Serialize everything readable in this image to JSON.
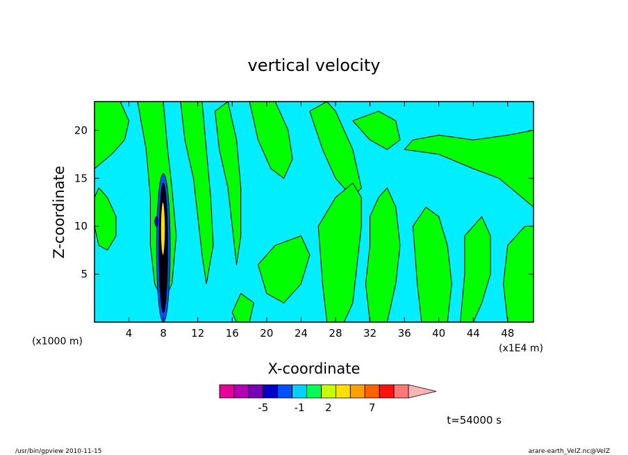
{
  "chart_data": {
    "type": "heatmap",
    "title": "vertical velocity",
    "xlabel": "X-coordinate",
    "ylabel": "Z-coordinate",
    "x_unit_left": "(x1000 m)",
    "x_unit_right": "(x1E4 m)",
    "xlim": [
      0,
      51
    ],
    "ylim": [
      0,
      23
    ],
    "x_ticks": [
      4,
      8,
      12,
      16,
      20,
      24,
      28,
      32,
      36,
      40,
      44,
      48
    ],
    "y_ticks": [
      5,
      10,
      15,
      20
    ],
    "background_color": "#00eeff",
    "contour_color": "#000000",
    "regions": [
      {
        "name": "positive",
        "color": "#00ff00",
        "polygons": [
          [
            [
              0,
              16
            ],
            [
              2,
              17.5
            ],
            [
              3.5,
              19
            ],
            [
              4,
              21
            ],
            [
              3,
              23
            ],
            [
              0,
              23
            ]
          ],
          [
            [
              0.5,
              14
            ],
            [
              1.5,
              13
            ],
            [
              2.5,
              11
            ],
            [
              2.5,
              9
            ],
            [
              1.5,
              7.5
            ],
            [
              0.5,
              8
            ],
            [
              0,
              10
            ],
            [
              0,
              13
            ]
          ],
          [
            [
              5,
              23
            ],
            [
              6,
              18
            ],
            [
              6.5,
              13
            ],
            [
              6.5,
              8
            ],
            [
              7,
              4
            ],
            [
              8,
              2
            ],
            [
              9,
              4
            ],
            [
              9.5,
              9
            ],
            [
              9,
              14
            ],
            [
              8.5,
              18
            ],
            [
              8,
              23
            ]
          ],
          [
            [
              10,
              23
            ],
            [
              10.5,
              19
            ],
            [
              11.5,
              15
            ],
            [
              12,
              11
            ],
            [
              12.5,
              7
            ],
            [
              13,
              4
            ],
            [
              13.8,
              8
            ],
            [
              13.5,
              13
            ],
            [
              13,
              18
            ],
            [
              12.5,
              23
            ]
          ],
          [
            [
              14,
              22
            ],
            [
              14.5,
              18
            ],
            [
              15.5,
              14
            ],
            [
              16,
              10
            ],
            [
              16.5,
              6
            ],
            [
              17,
              9
            ],
            [
              17,
              14
            ],
            [
              16.5,
              19
            ],
            [
              15.5,
              23
            ]
          ],
          [
            [
              18,
              23
            ],
            [
              19,
              19
            ],
            [
              20.5,
              16
            ],
            [
              22,
              15
            ],
            [
              23,
              17
            ],
            [
              22.5,
              20
            ],
            [
              21,
              23
            ]
          ],
          [
            [
              25,
              22
            ],
            [
              26.5,
              18
            ],
            [
              28,
              15
            ],
            [
              30,
              13
            ],
            [
              31,
              14
            ],
            [
              30,
              18
            ],
            [
              28,
              22
            ],
            [
              27,
              23
            ]
          ],
          [
            [
              30,
              21
            ],
            [
              32,
              19
            ],
            [
              34,
              18
            ],
            [
              35.5,
              19
            ],
            [
              35,
              21
            ],
            [
              33,
              22
            ]
          ],
          [
            [
              36,
              18
            ],
            [
              40,
              17.5
            ],
            [
              44,
              16
            ],
            [
              47,
              15
            ],
            [
              49,
              13.5
            ],
            [
              51,
              12
            ],
            [
              51,
              20
            ],
            [
              48,
              19.5
            ],
            [
              44,
              19
            ],
            [
              40,
              19.5
            ],
            [
              37,
              19
            ]
          ],
          [
            [
              26,
              10
            ],
            [
              28,
              13
            ],
            [
              30,
              14.5
            ],
            [
              31,
              13
            ],
            [
              31,
              10
            ],
            [
              30.5,
              6
            ],
            [
              30,
              2
            ],
            [
              29,
              0
            ],
            [
              27,
              0
            ],
            [
              26.5,
              4
            ]
          ],
          [
            [
              32,
              11
            ],
            [
              33,
              13
            ],
            [
              34,
              14
            ],
            [
              35,
              12
            ],
            [
              35.5,
              8
            ],
            [
              35,
              4
            ],
            [
              34,
              0
            ],
            [
              32,
              0
            ],
            [
              31.5,
              4
            ],
            [
              32,
              8
            ]
          ],
          [
            [
              37,
              10
            ],
            [
              38.5,
              12
            ],
            [
              40,
              11
            ],
            [
              41,
              8
            ],
            [
              41.5,
              4
            ],
            [
              41,
              0
            ],
            [
              38,
              0
            ],
            [
              37.5,
              4
            ]
          ],
          [
            [
              43,
              9
            ],
            [
              45,
              11
            ],
            [
              46,
              9
            ],
            [
              46,
              5
            ],
            [
              45,
              2
            ],
            [
              44,
              0
            ],
            [
              42.5,
              0
            ],
            [
              43,
              5
            ]
          ],
          [
            [
              48,
              8
            ],
            [
              50,
              10
            ],
            [
              51,
              10
            ],
            [
              51,
              0
            ],
            [
              48,
              0
            ],
            [
              47.5,
              4
            ]
          ],
          [
            [
              19,
              6
            ],
            [
              21,
              8
            ],
            [
              24,
              9
            ],
            [
              25,
              7
            ],
            [
              24,
              4
            ],
            [
              22,
              2
            ],
            [
              20,
              3
            ]
          ],
          [
            [
              16,
              1
            ],
            [
              17,
              3
            ],
            [
              18.5,
              2
            ],
            [
              18,
              0
            ],
            [
              16.5,
              0
            ]
          ]
        ]
      }
    ],
    "colorbar": {
      "colors": [
        "#e8009a",
        "#b400b4",
        "#7800b4",
        "#0000c8",
        "#0050ff",
        "#00d0ff",
        "#00ff50",
        "#c8ff00",
        "#ffe000",
        "#ffa000",
        "#ff6000",
        "#ff1010",
        "#ff7878",
        "#ffb4b4"
      ],
      "labels": [
        {
          "text": "-5",
          "pos": 3
        },
        {
          "text": "-1",
          "pos": 5.5
        },
        {
          "text": "2",
          "pos": 7.5
        },
        {
          "text": "7",
          "pos": 10.5
        }
      ]
    },
    "time_label": "t=54000 s"
  },
  "footer": {
    "left": "/usr/bin/gpview 2010-11-15",
    "right": "arare-earth_VelZ.nc@VelZ"
  }
}
